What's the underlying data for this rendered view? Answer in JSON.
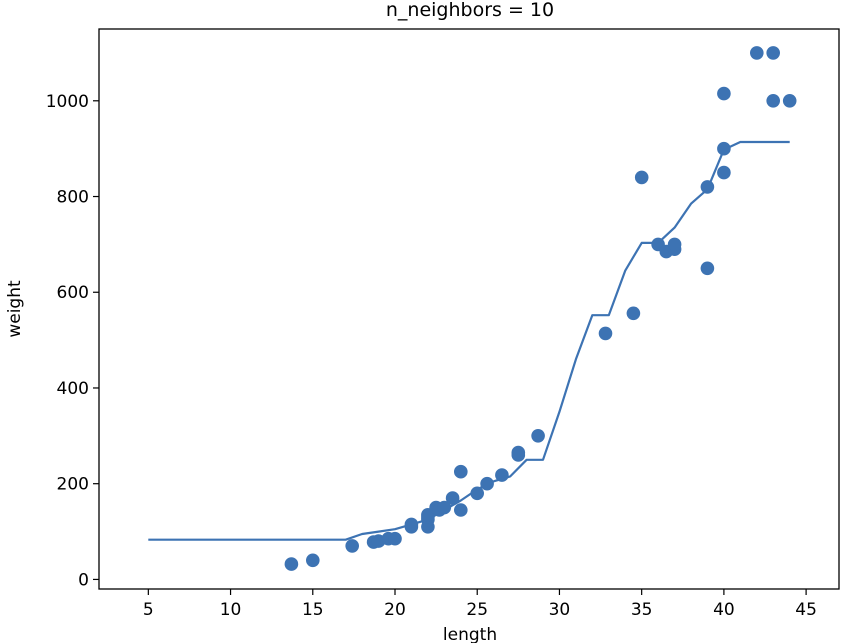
{
  "chart_data": {
    "type": "scatter",
    "title": "n_neighbors = 10",
    "xlabel": "length",
    "ylabel": "weight",
    "xlim": [
      2.0,
      47.0
    ],
    "ylim": [
      -20,
      1150
    ],
    "xticks": [
      5,
      10,
      15,
      20,
      25,
      30,
      35,
      40,
      45
    ],
    "yticks": [
      0,
      200,
      400,
      600,
      800,
      1000
    ],
    "grid": false,
    "legend": "none",
    "series": [
      {
        "kind": "scatter",
        "color": "#3d73b3",
        "points": [
          [
            13.7,
            32
          ],
          [
            15.0,
            40
          ],
          [
            17.4,
            70
          ],
          [
            18.7,
            78
          ],
          [
            19.0,
            80
          ],
          [
            19.6,
            85
          ],
          [
            20.0,
            85
          ],
          [
            21.0,
            110
          ],
          [
            21.0,
            115
          ],
          [
            22.0,
            110
          ],
          [
            22.0,
            125
          ],
          [
            22.0,
            130
          ],
          [
            22.0,
            135
          ],
          [
            22.5,
            150
          ],
          [
            22.7,
            145
          ],
          [
            23.0,
            150
          ],
          [
            23.5,
            170
          ],
          [
            24.0,
            145
          ],
          [
            24.0,
            225
          ],
          [
            25.0,
            180
          ],
          [
            25.6,
            200
          ],
          [
            26.5,
            218
          ],
          [
            27.5,
            260
          ],
          [
            27.5,
            265
          ],
          [
            28.7,
            300
          ],
          [
            32.8,
            514
          ],
          [
            34.5,
            556
          ],
          [
            35.0,
            840
          ],
          [
            36.0,
            700
          ],
          [
            36.5,
            685
          ],
          [
            37.0,
            690
          ],
          [
            37.0,
            700
          ],
          [
            39.0,
            650
          ],
          [
            39.0,
            820
          ],
          [
            40.0,
            850
          ],
          [
            40.0,
            900
          ],
          [
            40.0,
            1015
          ],
          [
            42.0,
            1100
          ],
          [
            43.0,
            1100
          ],
          [
            43.0,
            1000
          ],
          [
            44.0,
            1000
          ]
        ]
      },
      {
        "kind": "line",
        "color": "#3d73b3",
        "points": [
          [
            5,
            83
          ],
          [
            17,
            83
          ],
          [
            18,
            95
          ],
          [
            19,
            100
          ],
          [
            20,
            105
          ],
          [
            21,
            115
          ],
          [
            22,
            125
          ],
          [
            23,
            145
          ],
          [
            24,
            165
          ],
          [
            25,
            188
          ],
          [
            26,
            205
          ],
          [
            27,
            215
          ],
          [
            28,
            250
          ],
          [
            29,
            250
          ],
          [
            30,
            350
          ],
          [
            31,
            460
          ],
          [
            32,
            552
          ],
          [
            33,
            552
          ],
          [
            34,
            645
          ],
          [
            35,
            703
          ],
          [
            36,
            703
          ],
          [
            37,
            735
          ],
          [
            38,
            785
          ],
          [
            39,
            815
          ],
          [
            40,
            898
          ],
          [
            41,
            914
          ],
          [
            44,
            914
          ]
        ]
      }
    ]
  }
}
